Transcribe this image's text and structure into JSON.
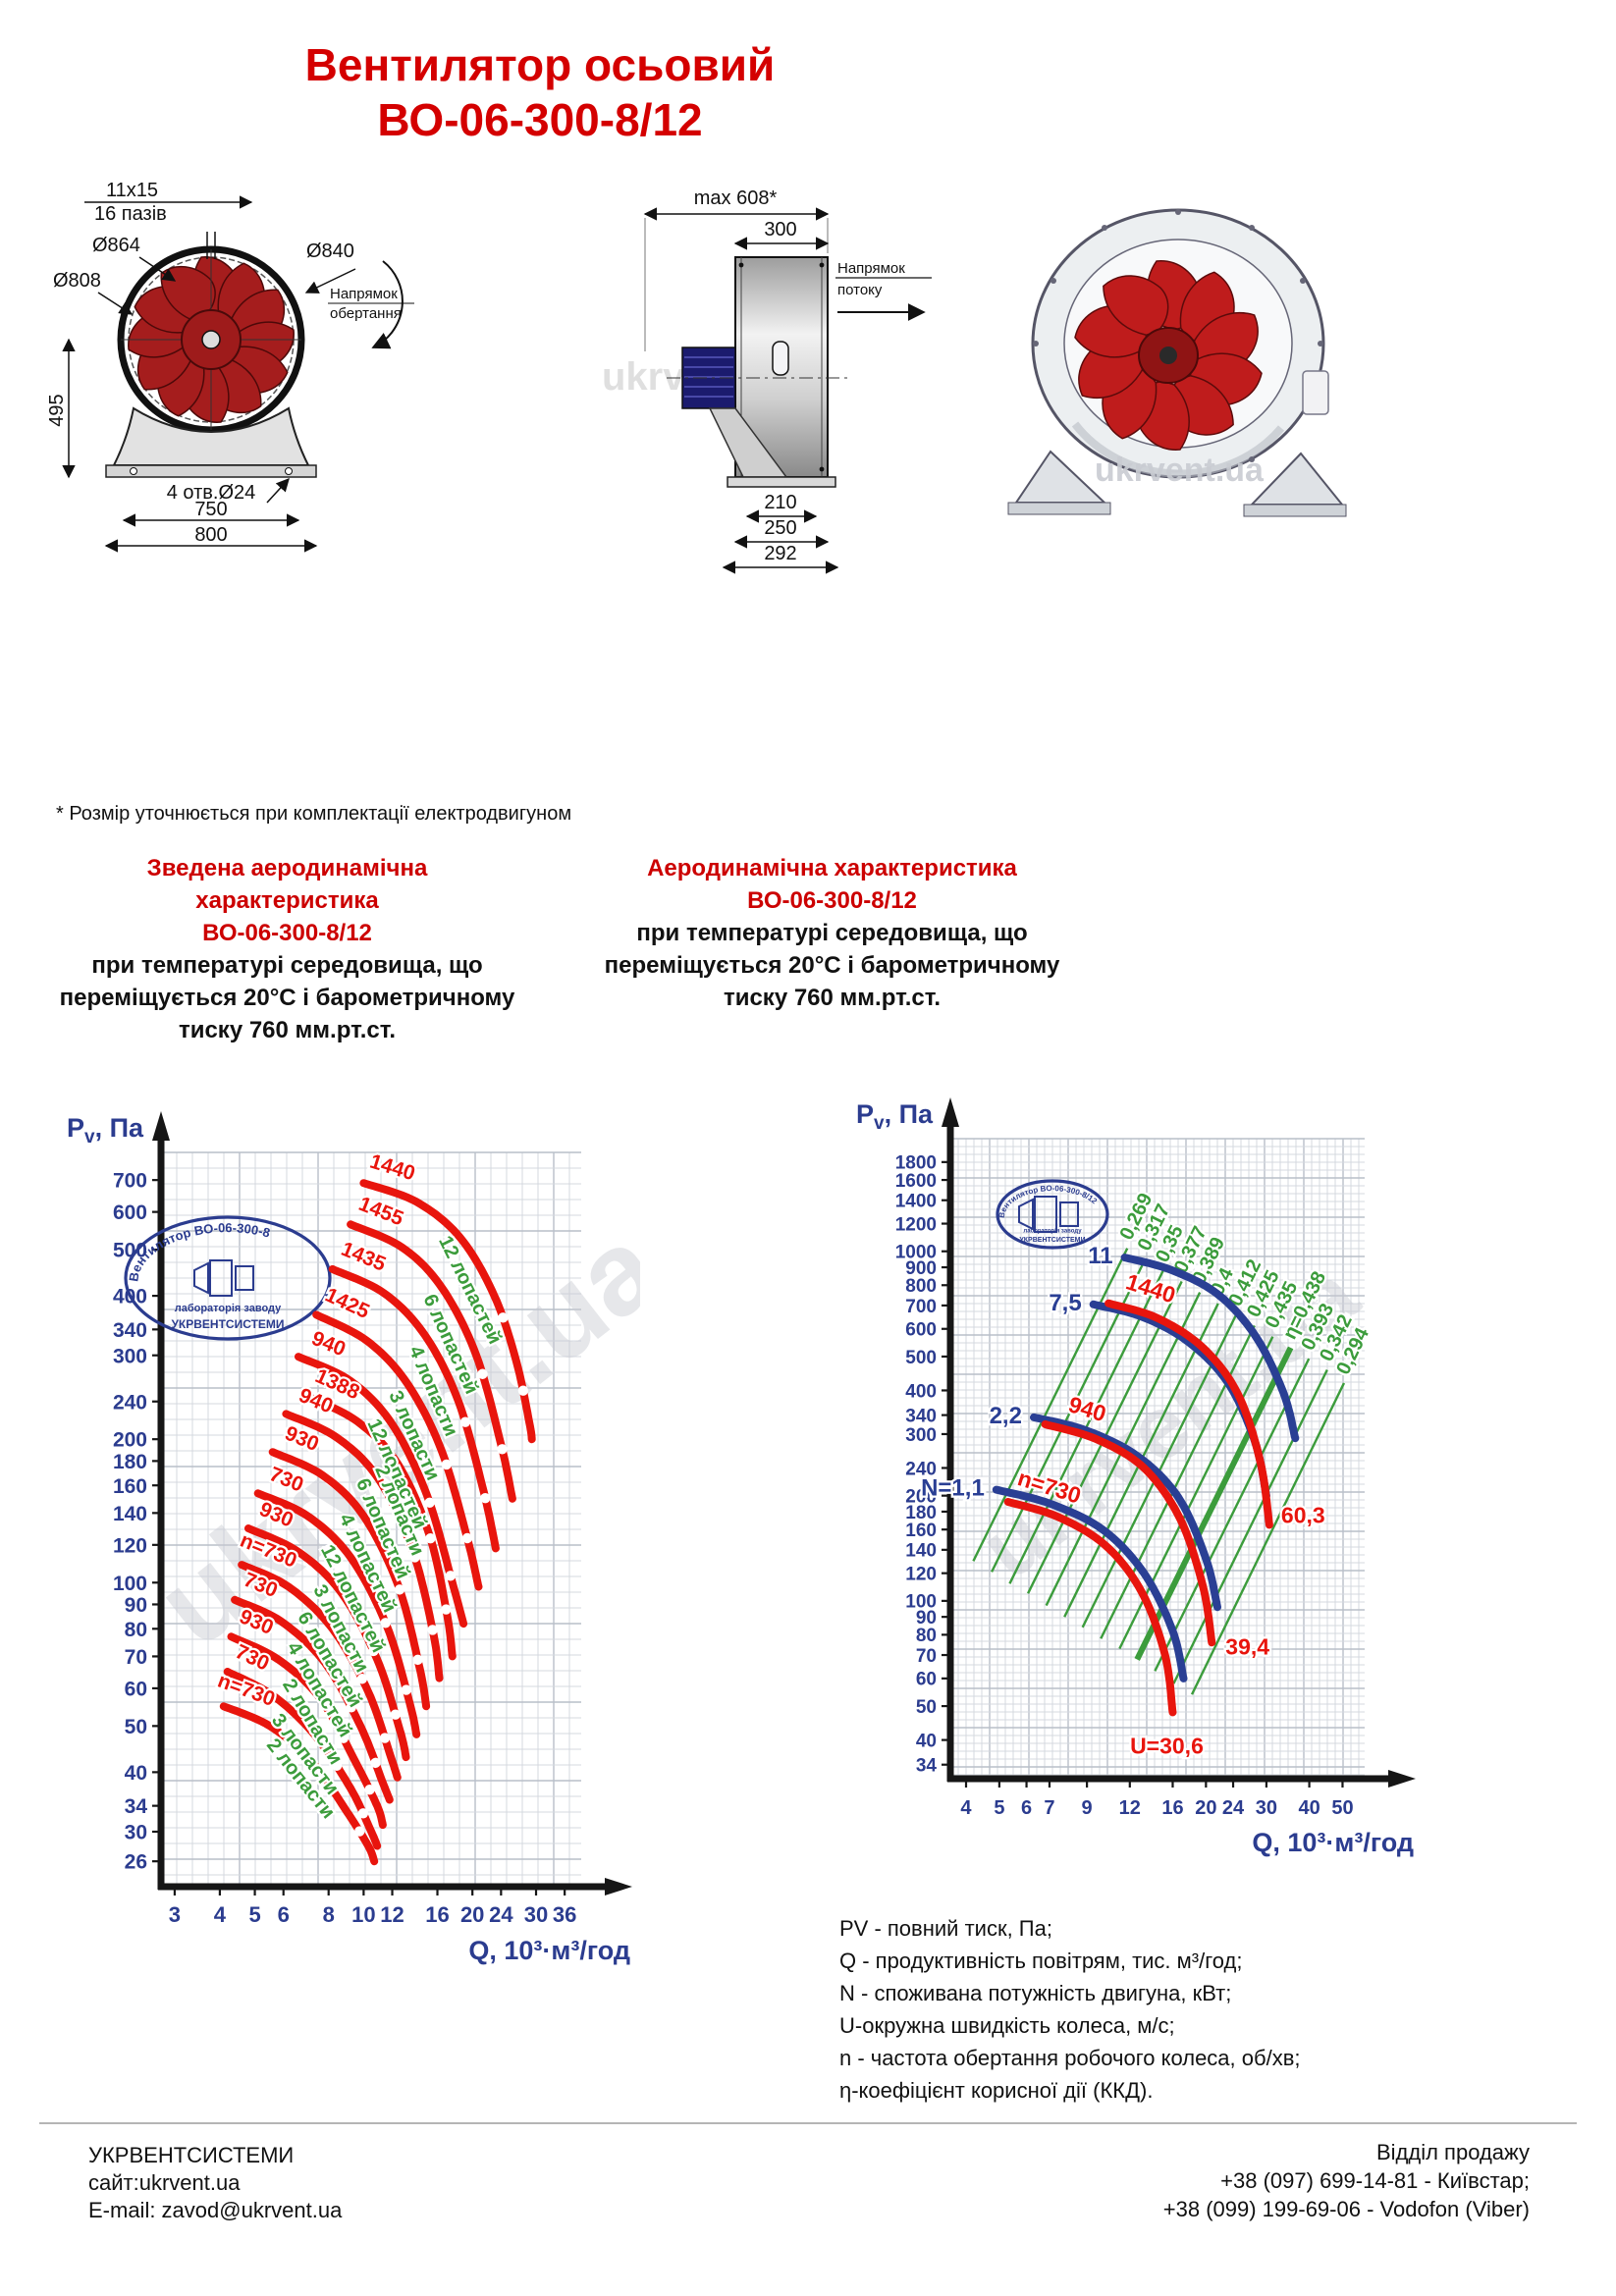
{
  "title": {
    "line1": "Вентилятор осьовий",
    "line2": "ВО-06-300-8/12"
  },
  "footnote": "* Розмір уточнюється при комплектації електродвигуном",
  "sections": {
    "left": {
      "red": [
        "Зведена аеродинамічна характеристика",
        "ВО-06-300-8/12"
      ],
      "black": [
        "при температурі середовища, що",
        "переміщується 20°С і барометричному",
        "тиску 760 мм.рт.ст."
      ]
    },
    "right": {
      "red": [
        "Аеродинамічна характеристика",
        "ВО-06-300-8/12"
      ],
      "black": [
        "при температурі середовища, що",
        "переміщується 20°С і барометричному",
        "тиску 760 мм.рт.ст."
      ]
    }
  },
  "drawings": {
    "front": {
      "slot": "11x15",
      "slots": "16 пазів",
      "d864": "Ø864",
      "d808": "Ø808",
      "d840": "Ø840",
      "rot1": "Напрямок",
      "rot2": "обертання",
      "h": "495",
      "holes": "4 отв.Ø24",
      "w750": "750",
      "w800": "800",
      "watermark": "ukrvent.ua"
    },
    "side": {
      "max": "max 608*",
      "w300": "300",
      "flow1": "Напрямок",
      "flow2": "потоку",
      "d210": "210",
      "d250": "250",
      "d292": "292",
      "watermark": "ukrvent.ua"
    },
    "iso": {
      "watermark": "ukrvent.ua"
    }
  },
  "legend": [
    "PV - повний тиск, Па;",
    "Q - продуктивність повітрям, тис. м³/год;",
    "N - споживана потужність двигуна, кВт;",
    "U-окружна швидкість колеса, м/с;",
    "n - частота обертання робочого колеса, об/хв;",
    "η-коефіцієнт корисної дії (ККД)."
  ],
  "footer": {
    "company": "УКРВЕНТСИСТЕМИ",
    "site": "сайт:ukrvent.ua",
    "email": "E-mail: zavod@ukrvent.ua",
    "sales": "Відділ продажу",
    "phone1": "+38 (097) 699-14-81 - Київстар;",
    "phone2": "+38 (099) 199-69-06 - Vodofon (Viber)"
  },
  "colors": {
    "red": "#e8150d",
    "blue": "#2a3f94",
    "green": "#3c9c3c",
    "axis": "#161616",
    "tick_text": "#2b3c8f"
  },
  "chart_data": [
    {
      "type": "line",
      "scale": "log-log",
      "title": "Зведена аеродинамічна характеристика ВО-06-300-8/12",
      "xlabel": "Q, 10³·м³/год",
      "ylabel": "Pv, Па",
      "x_ticks": [
        3,
        4,
        5,
        6,
        8,
        10,
        12,
        16,
        20,
        24,
        30,
        36
      ],
      "y_ticks": [
        26,
        30,
        34,
        40,
        50,
        60,
        70,
        80,
        90,
        100,
        120,
        140,
        160,
        180,
        200,
        240,
        300,
        340,
        400,
        500,
        600,
        700
      ],
      "x_domain": [
        2.75,
        40
      ],
      "y_domain": [
        23,
        800
      ],
      "grid": true,
      "legend_position": "none",
      "watermark": "ukrvent.ua",
      "logo": {
        "top": "Вентилятор ВО-06-300-8",
        "mid": "лабораторія заводу",
        "bot": "УКРВЕНТСИСТЕМИ"
      },
      "series": [
        {
          "label": "1440",
          "blades": "12 лопастей",
          "points": [
            [
              10.0,
              690
            ],
            [
              14,
              630
            ],
            [
              18.5,
              530
            ],
            [
              23,
              400
            ],
            [
              26.5,
              290
            ],
            [
              28.8,
              215
            ],
            [
              29.2,
              200
            ]
          ]
        },
        {
          "label": "1455",
          "blades": "6 лопастей",
          "points": [
            [
              9.2,
              565
            ],
            [
              12.8,
              505
            ],
            [
              16.5,
              415
            ],
            [
              20.5,
              300
            ],
            [
              24,
              195
            ],
            [
              25.8,
              150
            ]
          ]
        },
        {
          "label": "1435",
          "blades": "4 лопасти",
          "points": [
            [
              8.2,
              455
            ],
            [
              11.4,
              405
            ],
            [
              14.8,
              330
            ],
            [
              18.3,
              240
            ],
            [
              21.5,
              155
            ],
            [
              23.2,
              118
            ]
          ]
        },
        {
          "label": "1425",
          "blades": "3 лопасти",
          "points": [
            [
              7.4,
              365
            ],
            [
              10.2,
              322
            ],
            [
              13.2,
              262
            ],
            [
              16.4,
              190
            ],
            [
              19.3,
              125
            ],
            [
              20.8,
              98
            ]
          ]
        },
        {
          "label": "940",
          "blades": "12 лопастей",
          "points": [
            [
              6.6,
              298
            ],
            [
              9.2,
              265
            ],
            [
              12,
              215
            ],
            [
              15,
              152
            ],
            [
              17.6,
              100
            ],
            [
              18.9,
              82
            ]
          ]
        },
        {
          "label": "1388",
          "blades": "2 лопасти",
          "points": [
            [
              7.0,
              246
            ],
            [
              9.6,
              218
            ],
            [
              12.4,
              178
            ],
            [
              15.2,
              126
            ],
            [
              17,
              86
            ],
            [
              17.6,
              70
            ]
          ]
        },
        {
          "label": "940",
          "blades": "6 лопастей",
          "points": [
            [
              6.1,
              226
            ],
            [
              8.4,
              202
            ],
            [
              11,
              165
            ],
            [
              13.7,
              116
            ],
            [
              15.6,
              78
            ],
            [
              16.2,
              63
            ]
          ]
        },
        {
          "label": "930",
          "blades": "4 лопастей",
          "points": [
            [
              5.6,
              188
            ],
            [
              7.7,
              168
            ],
            [
              10,
              138
            ],
            [
              12.5,
              98
            ],
            [
              14.3,
              66
            ],
            [
              14.9,
              55
            ]
          ]
        },
        {
          "label": "730",
          "blades": "12 лопастей",
          "points": [
            [
              5.1,
              154
            ],
            [
              7,
              138
            ],
            [
              9.2,
              113
            ],
            [
              11.6,
              81
            ],
            [
              13.4,
              56
            ],
            [
              14,
              48
            ]
          ]
        },
        {
          "label": "930",
          "blades": "3 лопасти",
          "points": [
            [
              4.8,
              130
            ],
            [
              6.6,
              116
            ],
            [
              8.7,
              95
            ],
            [
              10.9,
              69
            ],
            [
              12.6,
              49
            ],
            [
              13.1,
              43
            ]
          ]
        },
        {
          "label": "n=730",
          "blades": "6 лопастей",
          "points": [
            [
              4.6,
              109
            ],
            [
              6.2,
              98
            ],
            [
              8.2,
              80
            ],
            [
              10.3,
              59
            ],
            [
              11.9,
              43
            ],
            [
              12.4,
              39
            ]
          ]
        },
        {
          "label": "730",
          "blades": "4 лопастей",
          "points": [
            [
              4.4,
              92
            ],
            [
              5.9,
              83
            ],
            [
              7.8,
              68
            ],
            [
              9.8,
              50
            ],
            [
              11.3,
              38
            ],
            [
              11.8,
              35
            ]
          ]
        },
        {
          "label": "930",
          "blades": "2 лопасти",
          "points": [
            [
              4.3,
              77
            ],
            [
              5.8,
              69
            ],
            [
              7.6,
              57
            ],
            [
              9.5,
              42
            ],
            [
              10.9,
              34
            ],
            [
              11.3,
              31
            ]
          ]
        },
        {
          "label": "730",
          "blades": "3 лопасти",
          "points": [
            [
              4.2,
              65
            ],
            [
              5.6,
              58
            ],
            [
              7.3,
              48
            ],
            [
              9.2,
              37
            ],
            [
              10.5,
              30
            ],
            [
              10.9,
              28
            ]
          ]
        },
        {
          "label": "n=730",
          "blades": "2 лопасти",
          "points": [
            [
              4.1,
              55
            ],
            [
              5.5,
              50
            ],
            [
              7.2,
              42
            ],
            [
              9.0,
              33
            ],
            [
              10.3,
              28
            ],
            [
              10.7,
              26
            ]
          ]
        }
      ]
    },
    {
      "type": "line",
      "scale": "log-log",
      "title": "Аеродинамічна характеристика ВО-06-300-8/12",
      "xlabel": "Q, 10³·м³/год",
      "ylabel": "Pv, Па",
      "x_ticks": [
        4,
        5,
        6,
        7,
        9,
        12,
        16,
        20,
        24,
        30,
        40,
        50
      ],
      "y_ticks": [
        34,
        40,
        50,
        60,
        70,
        80,
        90,
        100,
        120,
        140,
        160,
        180,
        200,
        240,
        300,
        340,
        400,
        500,
        600,
        700,
        800,
        900,
        1000,
        1200,
        1400,
        1600,
        1800
      ],
      "x_domain": [
        3.6,
        58
      ],
      "y_domain": [
        31,
        2100
      ],
      "grid": true,
      "legend_position": "none",
      "watermark": "ukrvent.ua",
      "logo": {
        "top": "Вентилятор ВО-06-300-8/12",
        "mid": "лабораторія заводу",
        "bot": "УКРВЕНТСИСТЕМИ"
      },
      "pressure_series": [
        {
          "label": "n=730",
          "u_label": "U=30,6",
          "u_offset": [
            -6,
            42
          ],
          "u_anchor": "middle",
          "points": [
            [
              5.3,
              192
            ],
            [
              7.4,
              174
            ],
            [
              10.2,
              144
            ],
            [
              13,
              106
            ],
            [
              15.2,
              70
            ],
            [
              16,
              48
            ]
          ]
        },
        {
          "label": "940",
          "u_label": "39,4",
          "u_offset": [
            14,
            12
          ],
          "u_anchor": "start",
          "points": [
            [
              6.8,
              320
            ],
            [
              9.6,
              290
            ],
            [
              13.2,
              240
            ],
            [
              16.8,
              172
            ],
            [
              19.6,
              110
            ],
            [
              20.8,
              76
            ]
          ]
        },
        {
          "label": "1440",
          "u_label": "60,3",
          "u_offset": [
            12,
            -2
          ],
          "u_anchor": "start",
          "points": [
            [
              10.4,
              710
            ],
            [
              14.4,
              645
            ],
            [
              19.6,
              530
            ],
            [
              24.8,
              390
            ],
            [
              28.8,
              250
            ],
            [
              30.6,
              165
            ]
          ]
        }
      ],
      "power_series": [
        {
          "label": "N=1,1",
          "points": [
            [
              4.9,
              208
            ],
            [
              7,
              190
            ],
            [
              10,
              160
            ],
            [
              13.2,
              120
            ],
            [
              16,
              82
            ],
            [
              17.2,
              60
            ]
          ]
        },
        {
          "label": "2,2",
          "points": [
            [
              6.3,
              335
            ],
            [
              8.9,
              308
            ],
            [
              12.6,
              260
            ],
            [
              16.6,
              198
            ],
            [
              20,
              132
            ],
            [
              21.6,
              96
            ]
          ]
        },
        {
          "label": "7,5",
          "points": [
            [
              9.4,
              705
            ],
            [
              13,
              650
            ],
            [
              17.8,
              550
            ],
            [
              23.2,
              420
            ],
            [
              27.8,
              285
            ],
            [
              30,
              200
            ]
          ]
        },
        {
          "label": "11",
          "points": [
            [
              11.6,
              960
            ],
            [
              15.8,
              885
            ],
            [
              21.6,
              755
            ],
            [
              27.8,
              575
            ],
            [
              33.6,
              395
            ],
            [
              36.4,
              292
            ]
          ]
        }
      ],
      "efficiency": [
        {
          "label": "0,269",
          "p": [
            4.2,
            130,
            11.8,
            1020
          ]
        },
        {
          "label": "0,317",
          "p": [
            4.75,
            121,
            13.3,
            949
          ]
        },
        {
          "label": "0,35",
          "p": [
            5.36,
            112,
            15.0,
            880
          ]
        },
        {
          "label": "0,377",
          "p": [
            6.06,
            105,
            17.0,
            820
          ]
        },
        {
          "label": "0,389",
          "p": [
            6.85,
            97,
            19.2,
            763
          ]
        },
        {
          "label": "0,4",
          "p": [
            7.74,
            90,
            21.7,
            709
          ]
        },
        {
          "label": "0,412",
          "p": [
            8.74,
            84,
            24.5,
            659
          ]
        },
        {
          "label": "0,425",
          "p": [
            9.88,
            78,
            27.7,
            613
          ]
        },
        {
          "label": "0,435",
          "p": [
            11.2,
            73,
            31.3,
            570
          ]
        },
        {
          "label": "η=0,438",
          "p": [
            12.6,
            68,
            35.3,
            530
          ],
          "bold": true
        },
        {
          "label": "0,393",
          "p": [
            14.2,
            63,
            39.9,
            493
          ]
        },
        {
          "label": "0,342",
          "p": [
            16.1,
            58,
            45.1,
            458
          ]
        },
        {
          "label": "0,294",
          "p": [
            18.2,
            54,
            50.5,
            420
          ]
        }
      ]
    }
  ]
}
